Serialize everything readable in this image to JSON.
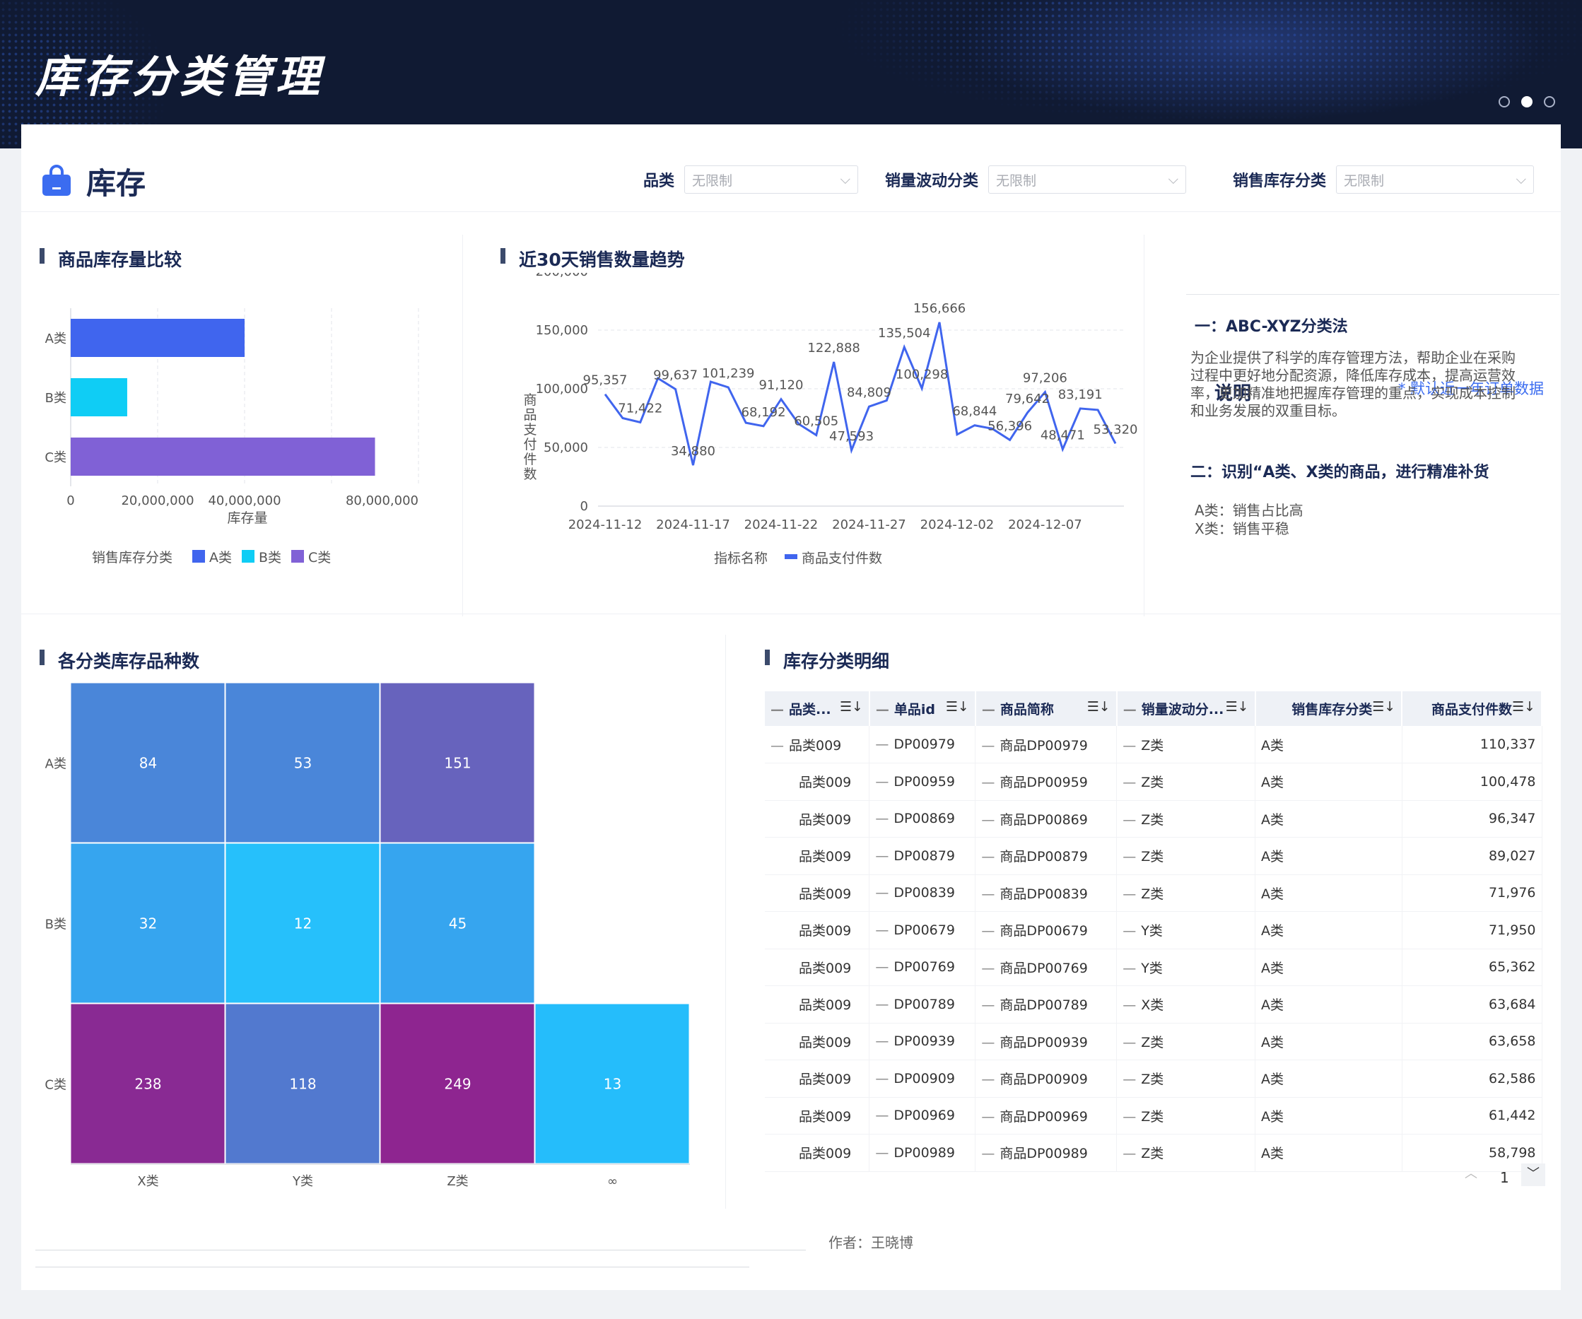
{
  "banner": {
    "title": "库存分类管理"
  },
  "header": {
    "title": "库存"
  },
  "filters": [
    {
      "label": "品类",
      "value": "无限制"
    },
    {
      "label": "销量波动分类",
      "value": "无限制"
    },
    {
      "label": "销售库存分类",
      "value": "无限制"
    }
  ],
  "sections": {
    "stock_compare": "商品库存量比较",
    "sales_trend": "近30天销售数量趋势",
    "heatmap": "各分类库存品种数",
    "detail": "库存分类明细"
  },
  "note": {
    "title": "说明",
    "hint": "* 默认近一年订单数据",
    "h1": "一：ABC-XYZ分类法",
    "p1": "为企业提供了科学的库存管理方法，帮助企业在采购过程中更好地分配资源，降低库存成本，提高运营效率，更加精准地把握库存管理的重点，实现成本控制和业务发展的双重目标。",
    "h2": "二：识别“A类、X类的商品，进行精准补货",
    "l1": "A类：销售占比高",
    "l2": "X类：销售平稳"
  },
  "chart_data": [
    {
      "type": "bar",
      "orientation": "horizontal",
      "categories": [
        "A类",
        "B类",
        "C类"
      ],
      "values": [
        40000000,
        13000000,
        70000000
      ],
      "xlabel": "库存量",
      "xticks": [
        "0",
        "20,000,000",
        "40,000,000",
        "80,000,000"
      ],
      "xlim": [
        0,
        80000000
      ],
      "legend_title": "销售库存分类",
      "legend": [
        "A类",
        "B类",
        "C类"
      ],
      "colors": [
        "#4065ee",
        "#0fcdf5",
        "#8061d6"
      ]
    },
    {
      "type": "line",
      "x": [
        "2024-11-12",
        "2024-11-13",
        "2024-11-14",
        "2024-11-15",
        "2024-11-16",
        "2024-11-17",
        "2024-11-18",
        "2024-11-19",
        "2024-11-20",
        "2024-11-21",
        "2024-11-22",
        "2024-11-23",
        "2024-11-24",
        "2024-11-25",
        "2024-11-26",
        "2024-11-27",
        "2024-11-28",
        "2024-11-29",
        "2024-11-30",
        "2024-12-01",
        "2024-12-02",
        "2024-12-03",
        "2024-12-04",
        "2024-12-05",
        "2024-12-06",
        "2024-12-07",
        "2024-12-08",
        "2024-12-09",
        "2024-12-10",
        "2024-12-11"
      ],
      "xticks": [
        "2024-11-12",
        "2024-11-17",
        "2024-11-22",
        "2024-11-27",
        "2024-12-02",
        "2024-12-07"
      ],
      "series": [
        {
          "name": "商品支付件数",
          "values": [
            95357,
            75000,
            71422,
            109000,
            99637,
            34880,
            106000,
            101239,
            71000,
            68192,
            91120,
            70000,
            60505,
            122888,
            47593,
            84809,
            90000,
            135504,
            100298,
            156666,
            61000,
            68844,
            66000,
            56396,
            79642,
            97206,
            48471,
            83191,
            82000,
            53320
          ]
        }
      ],
      "labels": [
        {
          "i": 0,
          "text": "95,357"
        },
        {
          "i": 2,
          "text": "71,422"
        },
        {
          "i": 4,
          "text": "99,637"
        },
        {
          "i": 5,
          "text": "34,880"
        },
        {
          "i": 7,
          "text": "101,239"
        },
        {
          "i": 9,
          "text": "68,192"
        },
        {
          "i": 10,
          "text": "91,120"
        },
        {
          "i": 12,
          "text": "60,505"
        },
        {
          "i": 13,
          "text": "122,888"
        },
        {
          "i": 14,
          "text": "47,593"
        },
        {
          "i": 15,
          "text": "84,809"
        },
        {
          "i": 17,
          "text": "135,504"
        },
        {
          "i": 18,
          "text": "100,298"
        },
        {
          "i": 19,
          "text": "156,666"
        },
        {
          "i": 21,
          "text": "68,844"
        },
        {
          "i": 23,
          "text": "56,396"
        },
        {
          "i": 24,
          "text": "79,642"
        },
        {
          "i": 25,
          "text": "97,206"
        },
        {
          "i": 26,
          "text": "48,471"
        },
        {
          "i": 27,
          "text": "83,191"
        },
        {
          "i": 29,
          "text": "53,320"
        }
      ],
      "ylabel": "商品支付件数",
      "yticks": [
        "0",
        "50,000",
        "100,000",
        "150,000",
        "200,000"
      ],
      "ylim": [
        0,
        200000
      ],
      "legend_title": "指标名称",
      "color": "#4065ee"
    },
    {
      "type": "heatmap",
      "rows": [
        "A类",
        "B类",
        "C类"
      ],
      "cols": [
        "X类",
        "Y类",
        "Z类",
        "∞"
      ],
      "values": [
        [
          84,
          53,
          151,
          null
        ],
        [
          32,
          12,
          45,
          null
        ],
        [
          238,
          118,
          249,
          13
        ]
      ],
      "colors": [
        [
          "#4a86d9",
          "#4a86d9",
          "#6763bd",
          null
        ],
        [
          "#36a5ef",
          "#26c0fb",
          "#36a5ef",
          null
        ],
        [
          "#892a93",
          "#5279cf",
          "#8e2590",
          "#25bdfb"
        ]
      ]
    }
  ],
  "table": {
    "columns": [
      "品类...",
      "单品id",
      "商品简称",
      "销量波动分...",
      "销售库存分类",
      "商品支付件数"
    ],
    "rows": [
      [
        "品类009",
        "DP00979",
        "商品DP00979",
        "Z类",
        "A类",
        "110,337"
      ],
      [
        "品类009",
        "DP00959",
        "商品DP00959",
        "Z类",
        "A类",
        "100,478"
      ],
      [
        "品类009",
        "DP00869",
        "商品DP00869",
        "Z类",
        "A类",
        "96,347"
      ],
      [
        "品类009",
        "DP00879",
        "商品DP00879",
        "Z类",
        "A类",
        "89,027"
      ],
      [
        "品类009",
        "DP00839",
        "商品DP00839",
        "Z类",
        "A类",
        "71,976"
      ],
      [
        "品类009",
        "DP00679",
        "商品DP00679",
        "Y类",
        "A类",
        "71,950"
      ],
      [
        "品类009",
        "DP00769",
        "商品DP00769",
        "Y类",
        "A类",
        "65,362"
      ],
      [
        "品类009",
        "DP00789",
        "商品DP00789",
        "X类",
        "A类",
        "63,684"
      ],
      [
        "品类009",
        "DP00939",
        "商品DP00939",
        "Z类",
        "A类",
        "63,658"
      ],
      [
        "品类009",
        "DP00909",
        "商品DP00909",
        "Z类",
        "A类",
        "62,586"
      ],
      [
        "品类009",
        "DP00969",
        "商品DP00969",
        "Z类",
        "A类",
        "61,442"
      ],
      [
        "品类009",
        "DP00989",
        "商品DP00989",
        "Z类",
        "A类",
        "58,798"
      ]
    ],
    "page": "1"
  },
  "footer": {
    "author": "作者：王晓博"
  }
}
